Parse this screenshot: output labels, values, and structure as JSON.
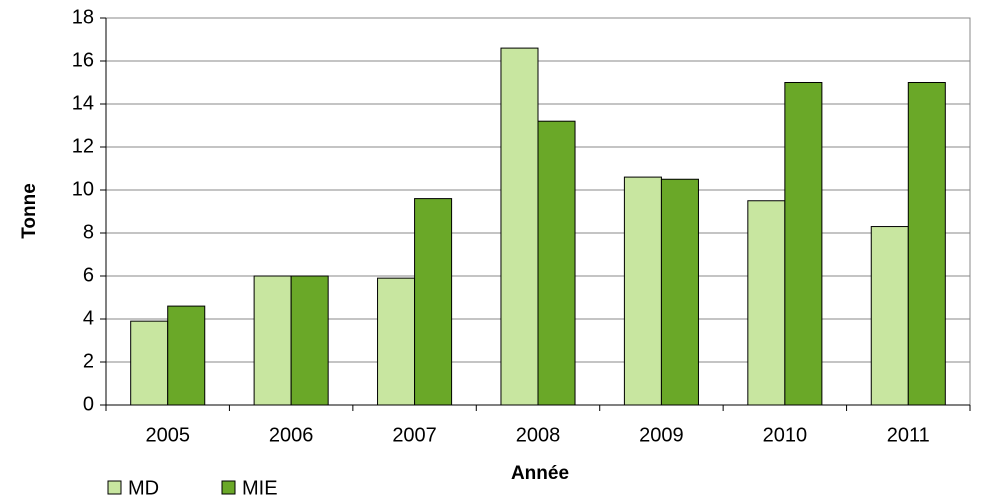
{
  "chart_data": {
    "type": "bar",
    "x_label": "Année",
    "y_label": "Tonne",
    "categories": [
      "2005",
      "2006",
      "2007",
      "2008",
      "2009",
      "2010",
      "2011"
    ],
    "series": [
      {
        "name": "MD",
        "color": "#c8e6a0",
        "values": [
          3.9,
          6.0,
          5.9,
          16.6,
          10.6,
          9.5,
          8.3
        ]
      },
      {
        "name": "MIE",
        "color": "#6aa828",
        "values": [
          4.6,
          6.0,
          9.6,
          13.2,
          10.5,
          15.0,
          15.0
        ]
      }
    ],
    "ylim": [
      0,
      18
    ],
    "yticks": [
      0,
      2,
      4,
      6,
      8,
      10,
      12,
      14,
      16,
      18
    ],
    "grid": true,
    "legend": "bottom-left"
  }
}
